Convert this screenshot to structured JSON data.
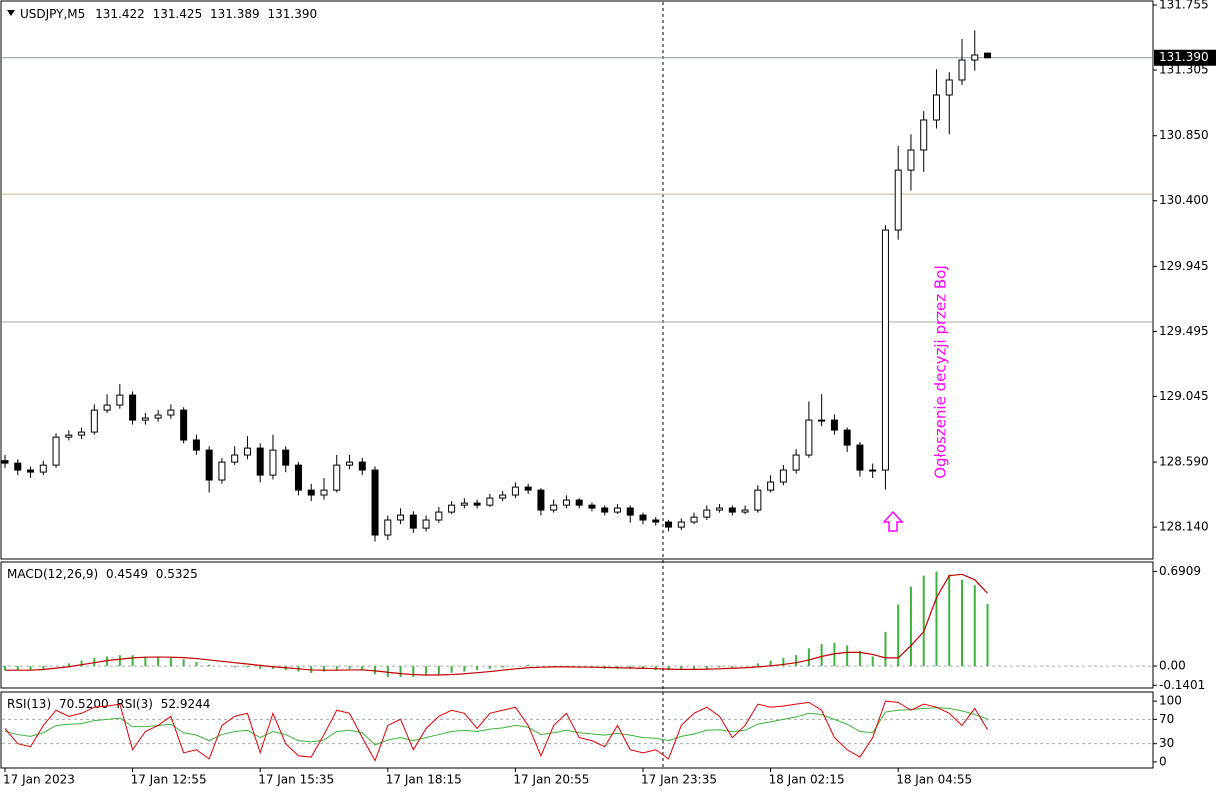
{
  "chart_data": [
    {
      "type": "candlestick",
      "symbol": "USDJPY,M5",
      "header_values": [
        131.422,
        131.425,
        131.389,
        {
          "value": 131.39,
          "label": "131.390"
        }
      ],
      "annotation": "Ogłoszenie decyzji przez BoJ",
      "annotation_color": "#ff00ff",
      "bull_color": "#ffffff",
      "bear_color": "#000000",
      "wick_color": "#000000",
      "bid": {
        "value": 131.39,
        "label": "131.390"
      },
      "bid_color": "#8a9aa0",
      "levels": [
        {
          "value": 130.446,
          "color": "#c8b48c"
        },
        {
          "value": 129.56,
          "color": "#a8a8a8"
        }
      ],
      "ylim": [
        127.926,
        131.776
      ],
      "yticks": [
        131.755,
        131.305,
        {
          "value": 130.85,
          "label": "130.850"
        },
        {
          "value": 130.4,
          "label": "130.400"
        },
        129.945,
        129.495,
        129.045,
        {
          "value": 128.59,
          "label": "128.590"
        },
        {
          "value": 128.14,
          "label": "128.140"
        }
      ],
      "categories": [
        "17 Jan 2023",
        null,
        null,
        null,
        null,
        null,
        null,
        null,
        null,
        null,
        "17 Jan 12:55",
        null,
        null,
        null,
        null,
        null,
        null,
        null,
        null,
        null,
        "17 Jan 15:35",
        null,
        null,
        null,
        null,
        null,
        null,
        null,
        null,
        null,
        "17 Jan 18:15",
        null,
        null,
        null,
        null,
        null,
        null,
        null,
        null,
        null,
        "17 Jan 20:55",
        null,
        null,
        null,
        null,
        null,
        null,
        null,
        null,
        null,
        "17 Jan 23:35",
        null,
        null,
        null,
        null,
        null,
        null,
        null,
        null,
        null,
        "18 Jan 02:15",
        null,
        null,
        null,
        null,
        null,
        null,
        null,
        null,
        null,
        "18 Jan 04:55",
        null,
        null,
        null,
        null,
        null,
        null,
        null
      ],
      "open": [
        128.6,
        128.583,
        128.535,
        128.521,
        128.569,
        128.763,
        128.777,
        128.798,
        128.95,
        128.985,
        129.054,
        128.881,
        128.895,
        128.916,
        128.95,
        128.743,
        128.673,
        128.466,
        128.59,
        128.639,
        128.687,
        128.5,
        128.673,
        128.569,
        128.396,
        128.362,
        128.396,
        128.569,
        128.59,
        128.535,
        128.085,
        128.189,
        128.223,
        128.133,
        128.189,
        128.244,
        128.292,
        128.306,
        128.292,
        128.341,
        128.362,
        128.417,
        128.396,
        128.258,
        128.292,
        128.327,
        128.292,
        128.272,
        128.244,
        128.272,
        128.223,
        128.189,
        128.175,
        128.14,
        128.175,
        128.209,
        128.258,
        128.272,
        128.244,
        128.258,
        128.396,
        128.452,
        128.535,
        128.639,
        128.881,
        128.881,
        128.812,
        128.708,
        128.535,
        128.535,
        130.197,
        130.612,
        130.751,
        130.959,
        131.132,
        131.236,
        131.374,
        131.422
      ],
      "high": [
        128.64,
        128.61,
        128.56,
        128.6,
        128.79,
        128.81,
        128.83,
        128.99,
        129.06,
        129.13,
        129.08,
        128.93,
        128.95,
        128.99,
        128.97,
        128.78,
        128.7,
        128.62,
        128.7,
        128.77,
        128.72,
        128.78,
        128.7,
        128.59,
        128.44,
        128.48,
        128.64,
        128.64,
        128.62,
        128.56,
        128.22,
        128.27,
        128.25,
        128.22,
        128.28,
        128.32,
        128.34,
        128.33,
        128.37,
        128.39,
        128.45,
        128.44,
        128.41,
        128.33,
        128.36,
        128.34,
        128.31,
        128.29,
        128.3,
        128.29,
        128.24,
        128.21,
        128.19,
        128.2,
        128.24,
        128.29,
        128.3,
        128.29,
        128.29,
        128.43,
        128.5,
        128.57,
        128.68,
        129.01,
        129.06,
        128.92,
        128.83,
        128.73,
        128.58,
        130.23,
        130.78,
        130.86,
        131.02,
        131.31,
        131.29,
        131.52,
        131.58,
        131.425
      ],
      "low": [
        128.55,
        128.5,
        128.48,
        128.5,
        128.55,
        128.74,
        128.75,
        128.78,
        128.93,
        128.96,
        128.85,
        128.85,
        128.87,
        128.89,
        128.72,
        128.64,
        128.38,
        128.44,
        128.57,
        128.61,
        128.45,
        128.47,
        128.52,
        128.36,
        128.32,
        128.33,
        128.38,
        128.54,
        128.5,
        128.04,
        128.05,
        128.16,
        128.1,
        128.11,
        128.17,
        128.23,
        128.27,
        128.27,
        128.28,
        128.32,
        128.34,
        128.37,
        128.22,
        128.24,
        128.27,
        128.27,
        128.25,
        128.22,
        128.23,
        128.17,
        128.16,
        128.15,
        128.11,
        128.12,
        128.16,
        128.19,
        128.24,
        128.22,
        128.23,
        128.24,
        128.38,
        128.43,
        128.51,
        128.62,
        128.84,
        128.78,
        128.66,
        128.49,
        128.48,
        128.4,
        130.13,
        130.47,
        130.6,
        130.9,
        130.86,
        131.2,
        131.3,
        131.389
      ],
      "close": [
        128.583,
        128.535,
        128.521,
        128.569,
        128.763,
        128.777,
        128.798,
        128.95,
        128.985,
        129.054,
        128.881,
        128.895,
        128.916,
        128.95,
        128.743,
        128.673,
        128.466,
        128.59,
        128.639,
        128.687,
        128.5,
        128.673,
        128.569,
        128.396,
        128.362,
        128.396,
        128.569,
        128.59,
        128.535,
        128.085,
        128.189,
        128.223,
        128.133,
        128.189,
        128.244,
        128.292,
        128.306,
        128.292,
        128.341,
        128.362,
        128.417,
        128.396,
        128.258,
        128.292,
        128.327,
        128.292,
        128.272,
        128.244,
        128.272,
        128.223,
        128.189,
        128.175,
        128.14,
        128.175,
        128.209,
        128.258,
        128.272,
        128.244,
        128.258,
        128.396,
        128.452,
        128.535,
        128.639,
        128.881,
        128.881,
        128.812,
        128.708,
        128.535,
        128.535,
        130.197,
        130.612,
        130.751,
        130.959,
        131.132,
        131.236,
        131.374,
        131.409,
        131.39
      ]
    },
    {
      "type": "macd",
      "indicator": "MACD(12,26,9)",
      "readings": [
        0.4549,
        0.5325
      ],
      "ylim": [
        -0.16,
        0.76
      ],
      "yticks": [
        0.6909,
        {
          "value": 0,
          "label": "0.00"
        },
        -0.1401
      ],
      "histogram": {
        "color": "#3cb43c",
        "values": [
          -0.03,
          -0.03,
          -0.03,
          -0.02,
          0.0,
          0.02,
          0.04,
          0.06,
          0.07,
          0.08,
          0.08,
          0.07,
          0.07,
          0.06,
          0.05,
          0.03,
          0.01,
          0.0,
          -0.01,
          -0.01,
          -0.02,
          -0.02,
          -0.03,
          -0.04,
          -0.05,
          -0.04,
          -0.03,
          -0.02,
          -0.03,
          -0.06,
          -0.08,
          -0.08,
          -0.08,
          -0.07,
          -0.06,
          -0.05,
          -0.04,
          -0.03,
          -0.02,
          -0.01,
          0.0,
          0.01,
          0.0,
          -0.01,
          -0.01,
          -0.01,
          -0.01,
          -0.02,
          -0.02,
          -0.02,
          -0.02,
          -0.03,
          -0.03,
          -0.03,
          -0.02,
          -0.02,
          -0.01,
          -0.01,
          0.0,
          0.02,
          0.04,
          0.06,
          0.08,
          0.13,
          0.16,
          0.17,
          0.15,
          0.11,
          0.07,
          0.25,
          0.45,
          0.58,
          0.66,
          0.69,
          0.67,
          0.63,
          0.59,
          0.4549
        ]
      },
      "signal": {
        "color": "#c00000",
        "values": [
          -0.03,
          -0.03,
          -0.03,
          -0.025,
          -0.015,
          -0.005,
          0.01,
          0.025,
          0.04,
          0.05,
          0.06,
          0.065,
          0.066,
          0.065,
          0.062,
          0.055,
          0.045,
          0.035,
          0.025,
          0.015,
          0.005,
          -0.005,
          -0.012,
          -0.02,
          -0.028,
          -0.03,
          -0.03,
          -0.028,
          -0.028,
          -0.035,
          -0.045,
          -0.055,
          -0.062,
          -0.065,
          -0.065,
          -0.062,
          -0.056,
          -0.048,
          -0.04,
          -0.03,
          -0.02,
          -0.012,
          -0.008,
          -0.006,
          -0.006,
          -0.007,
          -0.008,
          -0.01,
          -0.012,
          -0.014,
          -0.016,
          -0.019,
          -0.022,
          -0.024,
          -0.024,
          -0.022,
          -0.02,
          -0.016,
          -0.012,
          -0.006,
          0.002,
          0.012,
          0.025,
          0.045,
          0.07,
          0.09,
          0.1,
          0.1,
          0.085,
          0.06,
          0.06,
          0.15,
          0.25,
          0.5,
          0.66,
          0.67,
          0.63,
          0.5325
        ]
      }
    },
    {
      "type": "line",
      "ylim": [
        -10,
        115
      ],
      "yticks": [
        100,
        70,
        30,
        0
      ],
      "levels": [
        70,
        30
      ],
      "series": [
        {
          "name": "RSI(13)",
          "reading": {
            "value": 70.52,
            "label": "70.5200"
          },
          "color": "#3cb43c",
          "values": [
            50,
            45,
            42,
            48,
            60,
            62,
            63,
            68,
            70,
            72,
            58,
            58,
            60,
            62,
            48,
            44,
            35,
            45,
            50,
            52,
            40,
            50,
            45,
            35,
            33,
            36,
            50,
            52,
            48,
            28,
            36,
            40,
            35,
            40,
            45,
            50,
            52,
            50,
            54,
            56,
            60,
            57,
            45,
            48,
            52,
            48,
            46,
            44,
            47,
            44,
            40,
            39,
            35,
            42,
            46,
            52,
            53,
            50,
            52,
            62,
            66,
            70,
            74,
            80,
            78,
            70,
            62,
            50,
            48,
            82,
            85,
            86,
            88,
            89,
            88,
            84,
            78,
            70.52
          ]
        },
        {
          "name": "RSI(3)",
          "reading": 52.9244,
          "color": "#e00000",
          "values": [
            55,
            30,
            25,
            60,
            85,
            75,
            80,
            90,
            92,
            95,
            20,
            50,
            60,
            75,
            15,
            20,
            5,
            60,
            75,
            80,
            15,
            80,
            30,
            10,
            8,
            45,
            85,
            80,
            40,
            2,
            60,
            70,
            20,
            55,
            75,
            85,
            80,
            55,
            80,
            85,
            90,
            60,
            10,
            60,
            80,
            40,
            35,
            25,
            60,
            20,
            15,
            20,
            5,
            60,
            80,
            90,
            75,
            40,
            60,
            95,
            90,
            92,
            95,
            98,
            85,
            40,
            20,
            8,
            40,
            100,
            98,
            85,
            95,
            90,
            80,
            60,
            88,
            52.9244
          ]
        }
      ]
    }
  ]
}
